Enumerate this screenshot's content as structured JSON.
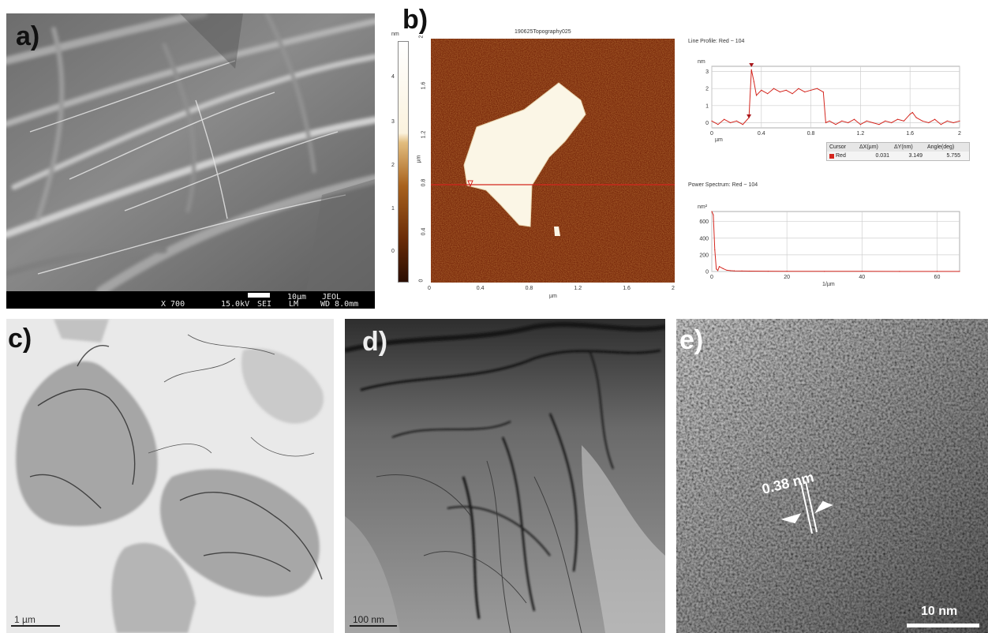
{
  "panels": {
    "a": {
      "label": "a)",
      "sem_info": {
        "mag": "X 700",
        "kv": "15.0kV",
        "mode": "SEI",
        "lm": "LM",
        "scale": "10µm",
        "maker": "JEOL",
        "wd": "WD 8.0mm"
      }
    },
    "b": {
      "label": "b)",
      "image_title": "190625Topography025",
      "colorbar_unit": "nm",
      "colorbar_ticks": [
        "4",
        "3",
        "2",
        "1",
        "0"
      ],
      "y_axis_label": "µm",
      "y_ticks": [
        "2",
        "1.6",
        "1.2",
        "0.8",
        "0.4",
        "0"
      ],
      "x_axis_label": "µm",
      "x_ticks": [
        "0",
        "0.4",
        "0.8",
        "1.2",
        "1.6",
        "2"
      ]
    },
    "c": {
      "label": "c)",
      "scale_label": "1 µm"
    },
    "d": {
      "label": "d)",
      "scale_label": "100 nm"
    },
    "e": {
      "label": "e)",
      "spacing_label": "0.38 nm",
      "scale_label": "10 nm"
    }
  },
  "line_profile": {
    "title": "Line Profile: Red  ~  104",
    "y_unit": "nm",
    "x_unit": "µm",
    "y_ticks": [
      "3",
      "2",
      "1",
      "0"
    ],
    "x_ticks": [
      "0",
      "0.4",
      "0.8",
      "1.2",
      "1.6",
      "2"
    ],
    "cursor_table": {
      "headers": [
        "Cursor",
        "ΔX(µm)",
        "ΔY(nm)",
        "Angle(deg)"
      ],
      "row": {
        "name": "Red",
        "dx": "0.031",
        "dy": "3.149",
        "angle": "5.755"
      }
    }
  },
  "power_spectrum": {
    "title": "Power Spectrum: Red  ~  104",
    "y_unit": "nm²",
    "x_unit": "1/µm",
    "y_ticks": [
      "600",
      "400",
      "200",
      "0"
    ],
    "x_ticks": [
      "0",
      "20",
      "40",
      "60"
    ]
  },
  "colors": {
    "profile_line": "#d4261e",
    "afm_background": "#7a2a0c",
    "flake": "#fbf6e6"
  },
  "chart_data": [
    {
      "type": "line",
      "title": "Line Profile: Red  ~  104",
      "xlabel": "µm",
      "ylabel": "nm",
      "xlim": [
        0,
        2
      ],
      "ylim": [
        -0.3,
        3.3
      ],
      "x": [
        0,
        0.05,
        0.1,
        0.15,
        0.2,
        0.25,
        0.3,
        0.32,
        0.34,
        0.36,
        0.4,
        0.45,
        0.5,
        0.55,
        0.6,
        0.65,
        0.7,
        0.75,
        0.8,
        0.85,
        0.9,
        0.92,
        0.95,
        1.0,
        1.05,
        1.1,
        1.15,
        1.2,
        1.25,
        1.3,
        1.35,
        1.4,
        1.45,
        1.5,
        1.55,
        1.6,
        1.62,
        1.65,
        1.7,
        1.75,
        1.8,
        1.85,
        1.9,
        1.95,
        2.0
      ],
      "series": [
        {
          "values": [
            0.1,
            -0.1,
            0.2,
            0.0,
            0.1,
            -0.1,
            0.3,
            3.1,
            2.4,
            1.6,
            1.9,
            1.7,
            2.0,
            1.8,
            1.9,
            1.7,
            2.0,
            1.8,
            1.9,
            2.0,
            1.8,
            0.0,
            0.1,
            -0.1,
            0.1,
            0.0,
            0.2,
            -0.1,
            0.1,
            0.0,
            -0.1,
            0.1,
            0.0,
            0.2,
            0.1,
            0.5,
            0.6,
            0.3,
            0.1,
            0.0,
            0.2,
            -0.1,
            0.1,
            0.0,
            0.1
          ]
        }
      ]
    },
    {
      "type": "line",
      "title": "Power Spectrum: Red  ~  104",
      "xlabel": "1/µm",
      "ylabel": "nm²",
      "xlim": [
        0,
        66
      ],
      "ylim": [
        0,
        720
      ],
      "x": [
        0,
        0.4,
        0.8,
        1.2,
        1.6,
        2,
        3,
        4,
        5,
        6,
        8,
        10,
        15,
        20,
        30,
        40,
        50,
        60,
        66
      ],
      "series": [
        {
          "values": [
            720,
            680,
            260,
            30,
            12,
            60,
            35,
            15,
            10,
            8,
            6,
            5,
            4,
            3,
            2,
            2,
            1,
            1,
            1
          ]
        }
      ]
    }
  ]
}
